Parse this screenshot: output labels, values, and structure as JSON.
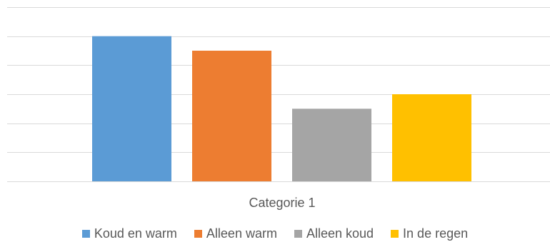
{
  "chart_data": {
    "type": "bar",
    "categories": [
      "Categorie 1"
    ],
    "series": [
      {
        "name": "Koud en warm",
        "values": [
          5.0
        ],
        "color": "#5B9BD5"
      },
      {
        "name": "Alleen warm",
        "values": [
          4.5
        ],
        "color": "#ED7D31"
      },
      {
        "name": "Alleen koud",
        "values": [
          2.5
        ],
        "color": "#A5A5A5"
      },
      {
        "name": "In de regen",
        "values": [
          3.0
        ],
        "color": "#FFC000"
      }
    ],
    "ylim": [
      0,
      6
    ],
    "grid": true,
    "legend": "bottom",
    "category_label": "Categorie 1"
  }
}
